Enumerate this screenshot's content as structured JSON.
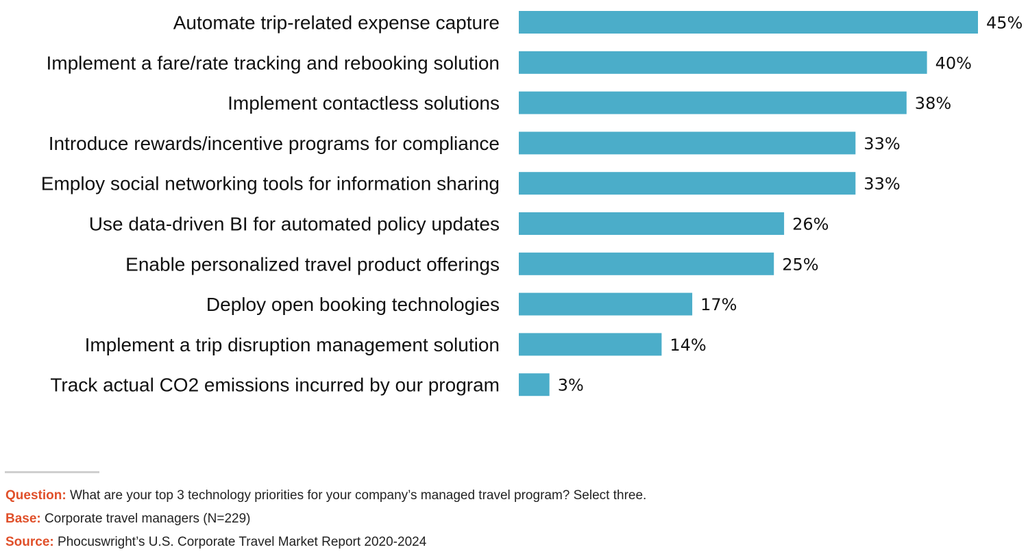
{
  "colors": {
    "bar": "#4badc9",
    "note_key": "#e0502a"
  },
  "chart_data": {
    "type": "bar",
    "orientation": "horizontal",
    "categories": [
      "Automate trip-related expense capture",
      "Implement a fare/rate tracking and rebooking solution",
      "Implement contactless solutions",
      "Introduce rewards/incentive programs for compliance",
      "Employ social networking tools for information sharing",
      "Use data-driven BI for automated policy updates",
      "Enable personalized travel product offerings",
      "Deploy open booking technologies",
      "Implement a trip disruption management solution",
      "Track actual CO2 emissions incurred by our program"
    ],
    "values": [
      45,
      40,
      38,
      33,
      33,
      26,
      25,
      17,
      14,
      3
    ],
    "value_labels": [
      "45%",
      "40%",
      "38%",
      "33%",
      "33%",
      "26%",
      "25%",
      "17%",
      "14%",
      "3%"
    ],
    "unit": "%",
    "xlim": [
      0,
      45
    ],
    "grid": false,
    "legend": "none"
  },
  "footer": {
    "question_key": "Question:",
    "question_text": "What are your top 3 technology priorities for your company’s managed travel program? Select three.",
    "base_key": "Base:",
    "base_text": "Corporate travel managers (N=229)",
    "source_key": "Source:",
    "source_text": "Phocuswright’s U.S. Corporate Travel Market Report 2020-2024"
  }
}
